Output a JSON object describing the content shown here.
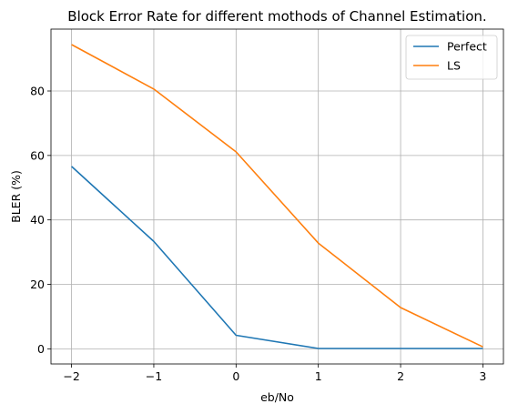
{
  "chart_data": {
    "type": "line",
    "title": "Block Error Rate for different mothods of Channel Estimation.",
    "xlabel": "eb/No",
    "ylabel": "BLER (%)",
    "x": [
      -2,
      -1,
      0,
      1,
      2,
      3
    ],
    "x_ticks": [
      -2,
      -1,
      0,
      1,
      2,
      3
    ],
    "x_tick_labels": [
      "−2",
      "−1",
      "0",
      "1",
      "2",
      "3"
    ],
    "y_ticks": [
      0,
      20,
      40,
      60,
      80
    ],
    "y_tick_labels": [
      "0",
      "20",
      "40",
      "60",
      "80"
    ],
    "xlim": [
      -2.25,
      3.25
    ],
    "ylim": [
      -4.7,
      99.2
    ],
    "grid": true,
    "legend_position": "upper right",
    "series": [
      {
        "name": "Perfect",
        "color": "#1f77b4",
        "values": [
          56.6,
          33.3,
          4.2,
          0.1,
          0.1,
          0.1
        ]
      },
      {
        "name": "LS",
        "color": "#ff7f0e",
        "values": [
          94.4,
          80.6,
          61.1,
          32.8,
          12.8,
          0.6
        ]
      }
    ]
  }
}
